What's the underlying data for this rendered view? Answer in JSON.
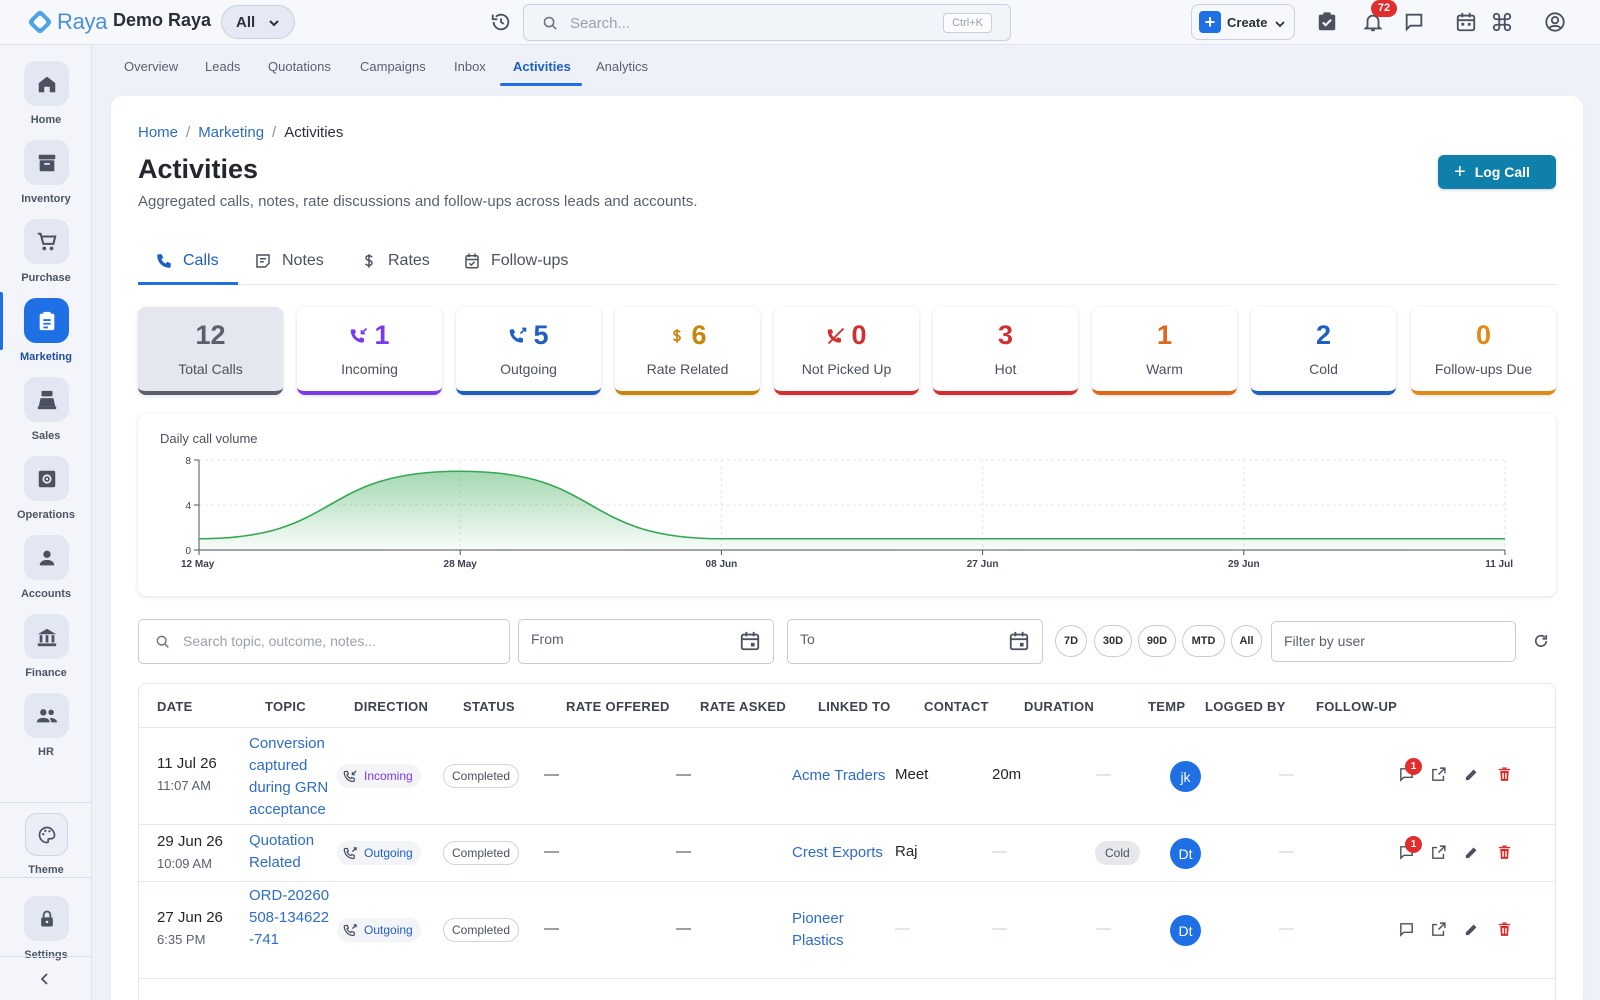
{
  "app": {
    "logo_text": "Raya",
    "org_name": "Demo Raya",
    "scope": "All"
  },
  "topbar": {
    "search_placeholder": "Search...",
    "search_shortcut": "Ctrl+K",
    "create_label": "Create",
    "notification_count": "72"
  },
  "sidebar": {
    "items": [
      {
        "label": "Home",
        "icon": "home-icon"
      },
      {
        "label": "Inventory",
        "icon": "archive-icon"
      },
      {
        "label": "Purchase",
        "icon": "cart-icon"
      },
      {
        "label": "Marketing",
        "icon": "clipboard-icon",
        "active": true
      },
      {
        "label": "Sales",
        "icon": "register-icon"
      },
      {
        "label": "Operations",
        "icon": "gear-box-icon"
      },
      {
        "label": "Accounts",
        "icon": "person-icon"
      },
      {
        "label": "Finance",
        "icon": "bank-icon"
      },
      {
        "label": "HR",
        "icon": "people-icon"
      }
    ],
    "theme_label": "Theme",
    "settings_label": "Settings"
  },
  "subnav": {
    "tabs": [
      "Overview",
      "Leads",
      "Quotations",
      "Campaigns",
      "Inbox",
      "Activities",
      "Analytics"
    ],
    "active": "Activities"
  },
  "breadcrumb": {
    "home": "Home",
    "section": "Marketing",
    "current": "Activities"
  },
  "page": {
    "title": "Activities",
    "subtitle": "Aggregated calls, notes, rate discussions and follow-ups across leads and accounts.",
    "primary_action": "Log Call"
  },
  "tabs": {
    "calls": "Calls",
    "notes": "Notes",
    "rates": "Rates",
    "followups": "Follow-ups",
    "active": "Calls"
  },
  "stats": {
    "total": {
      "value": "12",
      "label": "Total Calls"
    },
    "incoming": {
      "value": "1",
      "label": "Incoming",
      "color": "#7c3aed"
    },
    "outgoing": {
      "value": "5",
      "label": "Outgoing",
      "color": "#1f5fc4"
    },
    "rate": {
      "value": "6",
      "label": "Rate Related",
      "color": "#c8860b"
    },
    "notpicked": {
      "value": "0",
      "label": "Not Picked Up",
      "color": "#d32f2f"
    },
    "hot": {
      "value": "3",
      "label": "Hot",
      "color": "#d32f2f"
    },
    "warm": {
      "value": "1",
      "label": "Warm",
      "color": "#e0661a"
    },
    "cold": {
      "value": "2",
      "label": "Cold",
      "color": "#1f5fc4"
    },
    "followups": {
      "value": "0",
      "label": "Follow-ups Due",
      "color": "#e08a1a"
    }
  },
  "chart_data": {
    "type": "area",
    "title": "Daily call volume",
    "x_ticks": [
      "12 May",
      "28 May",
      "08 Jun",
      "27 Jun",
      "29 Jun",
      "11 Jul"
    ],
    "y_ticks": [
      0,
      4,
      8
    ],
    "ylim": [
      0,
      8
    ],
    "series": [
      {
        "values": [
          1,
          7,
          1,
          1,
          1,
          1
        ]
      }
    ],
    "color": "#34a853",
    "grid": true
  },
  "filters": {
    "search_placeholder": "Search topic, outcome, notes...",
    "from_label": "From",
    "to_label": "To",
    "ranges": [
      "7D",
      "30D",
      "90D",
      "MTD",
      "All"
    ],
    "user_placeholder": "Filter by user"
  },
  "table": {
    "columns": [
      "DATE",
      "TOPIC",
      "DIRECTION",
      "STATUS",
      "RATE OFFERED",
      "RATE ASKED",
      "LINKED TO",
      "CONTACT",
      "DURATION",
      "TEMP",
      "LOGGED BY",
      "FOLLOW-UP"
    ],
    "rows": [
      {
        "date": "11 Jul 26",
        "time": "11:07 AM",
        "topic": "Conversion captured during GRN acceptance",
        "direction": "Incoming",
        "status": "Completed",
        "rate_offered": "—",
        "rate_asked": "—",
        "linked_to": "Acme Traders",
        "contact": "Meet",
        "duration": "20m",
        "temp": "—",
        "logged_by": "jk",
        "follow_up": "—",
        "comments": "1"
      },
      {
        "date": "29 Jun 26",
        "time": "10:09 AM",
        "topic": "Quotation Related",
        "direction": "Outgoing",
        "status": "Completed",
        "rate_offered": "—",
        "rate_asked": "—",
        "linked_to": "Crest Exports",
        "contact": "Raj",
        "duration": "—",
        "temp": "Cold",
        "logged_by": "Dt",
        "follow_up": "—",
        "comments": "1"
      },
      {
        "date": "27 Jun 26",
        "time": "6:35 PM",
        "topic": "ORD-20260508-134622-741",
        "direction": "Outgoing",
        "status": "Completed",
        "rate_offered": "—",
        "rate_asked": "—",
        "linked_to": "Pioneer Plastics",
        "contact": "—",
        "duration": "—",
        "temp": "—",
        "logged_by": "Dt",
        "follow_up": "—",
        "comments": ""
      }
    ]
  }
}
